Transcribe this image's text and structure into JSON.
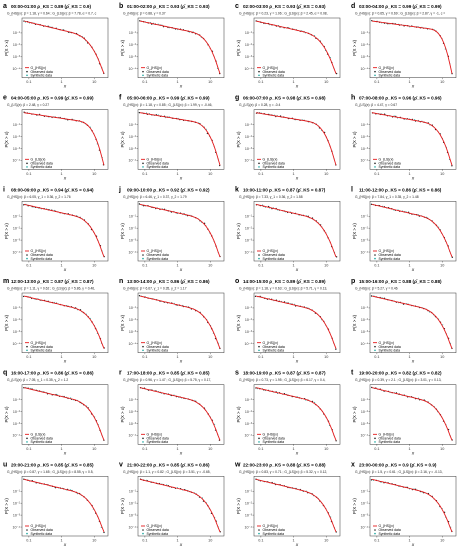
{
  "figure": {
    "legend_observed": "Observed data",
    "legend_synthetic": "Synthetic data",
    "y_axis_label": "P(X > x)",
    "x_axis_label": "x",
    "x_tick_labels": [
      "0.1",
      "1",
      "10"
    ],
    "y_tick_labels": [
      "10⁻¹",
      "10⁻²",
      "10⁻³",
      "10⁻⁴"
    ]
  },
  "colors": {
    "fit_line": "#e41a1c",
    "observed": "#222222",
    "synthetic": "#1aa7a0",
    "axis": "#333333"
  },
  "chart_data": [
    {
      "type": "line",
      "letter": "a",
      "interval": "00:00-01:00",
      "title_stats": "ρ_KS = 0.89 (ρ̄_KS = 0.9)",
      "fit_legend": "G_{HS}(x)",
      "params": "G_{HS}(x): β = 1.18, γ = 0.64 ; G_{LS}(x): β = 7.78, α = 0.7, c",
      "drop": 0.8,
      "bend": 0.55
    },
    {
      "type": "line",
      "letter": "b",
      "interval": "01:00-02:00",
      "title_stats": "ρ_KS = 0.93 (ρ̄_KS = 0.93)",
      "fit_legend": "G_{HS}(x)",
      "params": "G_{HS}(x): β = 0.88, γ = 0.37",
      "drop": 0.7,
      "bend": 0.6
    },
    {
      "type": "line",
      "letter": "c",
      "interval": "02:00-03:00",
      "title_stats": "ρ_KS = 0.93 (ρ̄_KS = 0.93)",
      "fit_legend": "G_{HS}(x)",
      "params": "G_{HS}(x): β = 0.23, γ = 1.06 ; G_{LS}(x): β = 2.45, α = 0.08,",
      "drop": 0.75,
      "bend": 0.55
    },
    {
      "type": "line",
      "letter": "d",
      "interval": "03:00-04:00",
      "title_stats": "ρ_KS = 0.99 (ρ̄_KS = 0.99)",
      "fit_legend": "G_{HS}(x)",
      "params": "G_{HS}(x): β = 0.65, γ = 0.69 ; G_{LS}(x): β = 2.87, γ = -1, c =",
      "drop": 0.45,
      "bend": 0.7
    },
    {
      "type": "line",
      "letter": "e",
      "interval": "04:00-05:00",
      "title_stats": "ρ_KS = 0.99 (ρ̄_KS = 0.99)",
      "fit_legend": "G_{LS}(x)",
      "params": "G_{LS}(x): β = 2.48, γ = 0.27",
      "drop": 0.5,
      "bend": 0.65
    },
    {
      "type": "line",
      "letter": "f",
      "interval": "05:00-06:00",
      "title_stats": "ρ_KS = 0.99 (ρ̄_KS = 0.99)",
      "fit_legend": "G_{HS}(x)",
      "params": "G_{HS}(x): β = 1.18, γ = 0.85 ; G_{LS}(x): β = 1.99, γ = -0.46,",
      "drop": 0.55,
      "bend": 0.62
    },
    {
      "type": "line",
      "letter": "g",
      "interval": "06:00-07:00",
      "title_stats": "ρ_KS = 0.98 (ρ̄_KS = 0.98)",
      "fit_legend": "G_{LS}(x)",
      "params": "G_{LS}(x): β = 0.28, γ = -0.4",
      "drop": 0.55,
      "bend": 0.62
    },
    {
      "type": "line",
      "letter": "h",
      "interval": "07:00-08:00",
      "title_stats": "ρ_KS = 0.96 (ρ̄_KS = 0.96)",
      "fit_legend": "G_{LS}(x)",
      "params": "G_{LS}(x): β = 4.47, γ = 0.67",
      "drop": 0.6,
      "bend": 0.6
    },
    {
      "type": "line",
      "letter": "i",
      "interval": "08:00-09:00",
      "title_stats": "ρ_KS = 0.94 (ρ̄_KS = 0.94)",
      "fit_legend": "G_{HS}(x)",
      "params": "G_{HS}(x): β = 6.05, γ_1 = 0.36, γ_2 = 1.76",
      "drop": 0.75,
      "bend": 0.58
    },
    {
      "type": "line",
      "letter": "j",
      "interval": "09:00-10:00",
      "title_stats": "ρ_KS = 0.92 (ρ̄_KS = 0.92)",
      "fit_legend": "G_{HS}(x)",
      "params": "G_{HS}(x): β = 6.46, γ_1 = 0.37, γ_2 = 1.79",
      "drop": 0.75,
      "bend": 0.58
    },
    {
      "type": "line",
      "letter": "k",
      "interval": "10:00-11:00",
      "title_stats": "ρ_KS = 0.87 (ρ̄_KS = 0.87)",
      "fit_legend": "G_{HS}(x)",
      "params": "G_{HS}(x): β = 7.33, γ_1 = 0.36, γ_2 = 1.58",
      "drop": 0.78,
      "bend": 0.56
    },
    {
      "type": "line",
      "letter": "l",
      "interval": "11:00-12:00",
      "title_stats": "ρ_KS = 0.86 (ρ̄_KS = 0.86)",
      "fit_legend": "G_{HS}(x)",
      "params": "G_{HS}(x): β = 7.84, γ_1 = 0.35, γ_2 = 1.48",
      "drop": 0.78,
      "bend": 0.56
    },
    {
      "type": "line",
      "letter": "m",
      "interval": "12:00-13:00",
      "title_stats": "ρ_KS = 0.87 (ρ̄_KS = 0.87)",
      "fit_legend": "G_{HS}(x)",
      "params": "G_{HS}(x): β = 1.11, γ = 0.62 ; G_{LS}(x): β = 5.86, γ = 0.46,",
      "drop": 0.78,
      "bend": 0.56
    },
    {
      "type": "line",
      "letter": "n",
      "interval": "13:00-14:00",
      "title_stats": "ρ_KS = 0.86 (ρ̄_KS = 0.86)",
      "fit_legend": "G_{HS}(x)",
      "params": "G_{HS}(x): β = 6.67, γ_1 = 0.35, γ_2 = 1.17",
      "drop": 0.78,
      "bend": 0.56
    },
    {
      "type": "line",
      "letter": "o",
      "interval": "14:00-15:00",
      "title_stats": "ρ_KS = 0.89 (ρ̄_KS = 0.89)",
      "fit_legend": "G_{HS}(x)",
      "params": "G_{HS}(x): β = 1.18, γ = 0.63 ; G_{LS}(x): β = 5.71, γ = 0.13,",
      "drop": 0.78,
      "bend": 0.56
    },
    {
      "type": "line",
      "letter": "p",
      "interval": "15:00-16:00",
      "title_stats": "ρ_KS = 0.88 (ρ̄_KS = 0.88)",
      "fit_legend": "G_{HS}(x)",
      "params": "G_{HS}(x): β = 5.27, γ = 0.46",
      "drop": 0.78,
      "bend": 0.56
    },
    {
      "type": "line",
      "letter": "q",
      "interval": "16:00-17:00",
      "title_stats": "ρ_KS = 0.86 (ρ̄_KS = 0.86)",
      "fit_legend": "G_{LS}(x)",
      "params": "G_{LS}(x): β = 7.05, γ_1 = 0.35, γ_2 = 1.2",
      "drop": 0.78,
      "bend": 0.56
    },
    {
      "type": "line",
      "letter": "r",
      "interval": "17:00-18:00",
      "title_stats": "ρ_KS = 0.85 (ρ̄_KS = 0.85)",
      "fit_legend": "G_{HS}(x)",
      "params": "G_{HS}(x): β = 0.96, γ = 1.47 ; G_{LS}(x): β = 5.75, γ = 0.17,",
      "drop": 0.78,
      "bend": 0.56
    },
    {
      "type": "line",
      "letter": "s",
      "interval": "18:00-19:00",
      "title_stats": "ρ_KS = 0.87 (ρ̄_KS = 0.87)",
      "fit_legend": "G_{HS}(x)",
      "params": "G_{HS}(x): β = 0.73, γ = 1.95 ; G_{LS}(x): β = 6.17, γ = 0.4,",
      "drop": 0.78,
      "bend": 0.56
    },
    {
      "type": "line",
      "letter": "t",
      "interval": "19:00-20:00",
      "title_stats": "ρ_KS = 0.82 (ρ̄_KS = 0.82)",
      "fit_legend": "G_{HS}(x)",
      "params": "G_{HS}(x): β = 0.39, γ = 2.1 ; G_{LS}(x): β = 3.01, γ = 0.13,",
      "drop": 0.8,
      "bend": 0.55
    },
    {
      "type": "line",
      "letter": "u",
      "interval": "20:00-21:00",
      "title_stats": "ρ_KS = 0.85 (ρ̄_KS = 0.85)",
      "fit_legend": "G_{HS}(x)",
      "params": "G_{HS}(x): β = 0.87, γ = 1.65 ; G_{LS}(x): β = 8.55, γ = 0.5,",
      "drop": 0.8,
      "bend": 0.55
    },
    {
      "type": "line",
      "letter": "v",
      "interval": "21:00-22:00",
      "title_stats": "ρ_KS = 0.85 (ρ̄_KS = 0.86)",
      "fit_legend": "G_{HS}(x)",
      "params": "G_{HS}(x): β = 1.1, γ = 0.82 ; G_{LS}(x): β = 3.51, γ = -0.65,",
      "drop": 0.8,
      "bend": 0.55
    },
    {
      "type": "line",
      "letter": "w",
      "interval": "22:00-23:00",
      "title_stats": "ρ_KS = 0.88 (ρ̄_KS = 0.88)",
      "fit_legend": "G_{HS}(x)",
      "params": "G_{HS}(x): β = 0.83, γ = 0.71 ; G_{LS}(x): β = 5.32, γ = 0.12,",
      "drop": 0.8,
      "bend": 0.55
    },
    {
      "type": "line",
      "letter": "x",
      "interval": "23:00-00:00",
      "title_stats": "ρ_KS = 0.9 (ρ̄_KS = 0.9)",
      "fit_legend": "G_{HS}(x)",
      "params": "G_{HS}(x): β = 1.5, γ = 0.61 ; G_{LS}(x): β = 2.16, γ = -0.13,",
      "drop": 0.8,
      "bend": 0.55
    }
  ]
}
